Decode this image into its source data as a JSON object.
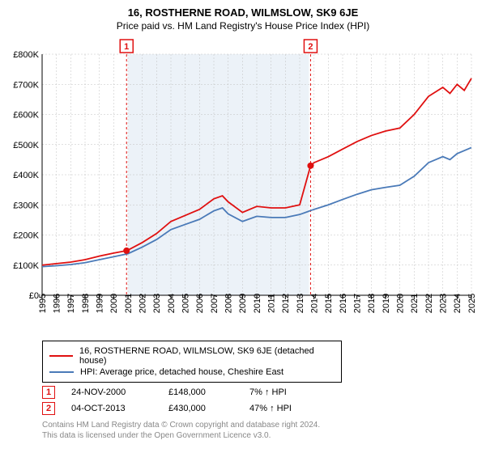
{
  "title": "16, ROSTHERNE ROAD, WILMSLOW, SK9 6JE",
  "subtitle": "Price paid vs. HM Land Registry's House Price Index (HPI)",
  "chart": {
    "type": "line",
    "background_color": "#ffffff",
    "grid_color": "#c0c0c0",
    "axis_color": "#000000",
    "band_color": "#dfeaf4",
    "xlim": [
      1995,
      2025
    ],
    "ylim": [
      0,
      800000
    ],
    "y_ticks": [
      0,
      100000,
      200000,
      300000,
      400000,
      500000,
      600000,
      700000,
      800000
    ],
    "y_tick_labels": [
      "£0",
      "£100K",
      "£200K",
      "£300K",
      "£400K",
      "£500K",
      "£600K",
      "£700K",
      "£800K"
    ],
    "x_ticks": [
      1995,
      1996,
      1997,
      1998,
      1999,
      2000,
      2001,
      2002,
      2003,
      2004,
      2005,
      2006,
      2007,
      2008,
      2009,
      2010,
      2011,
      2012,
      2013,
      2014,
      2015,
      2016,
      2017,
      2018,
      2019,
      2020,
      2021,
      2022,
      2023,
      2024,
      2025
    ],
    "band_ranges": [
      [
        2000.9,
        2001.1
      ],
      [
        2013.76,
        2014.0
      ]
    ],
    "series": [
      {
        "name": "property",
        "label": "16, ROSTHERNE ROAD, WILMSLOW, SK9 6JE (detached house)",
        "color": "#e01010",
        "line_width": 1.8,
        "points": [
          [
            1995,
            100000
          ],
          [
            1996,
            105000
          ],
          [
            1997,
            110000
          ],
          [
            1998,
            118000
          ],
          [
            1999,
            130000
          ],
          [
            2000,
            140000
          ],
          [
            2000.9,
            148000
          ],
          [
            2001,
            150000
          ],
          [
            2002,
            175000
          ],
          [
            2003,
            205000
          ],
          [
            2004,
            245000
          ],
          [
            2005,
            265000
          ],
          [
            2006,
            285000
          ],
          [
            2007,
            320000
          ],
          [
            2007.6,
            330000
          ],
          [
            2008,
            310000
          ],
          [
            2009,
            275000
          ],
          [
            2010,
            295000
          ],
          [
            2011,
            290000
          ],
          [
            2012,
            290000
          ],
          [
            2013,
            300000
          ],
          [
            2013.76,
            430000
          ],
          [
            2014,
            440000
          ],
          [
            2015,
            460000
          ],
          [
            2016,
            485000
          ],
          [
            2017,
            510000
          ],
          [
            2018,
            530000
          ],
          [
            2019,
            545000
          ],
          [
            2020,
            555000
          ],
          [
            2021,
            600000
          ],
          [
            2022,
            660000
          ],
          [
            2023,
            690000
          ],
          [
            2023.5,
            670000
          ],
          [
            2024,
            700000
          ],
          [
            2024.5,
            680000
          ],
          [
            2025,
            720000
          ]
        ]
      },
      {
        "name": "hpi",
        "label": "HPI: Average price, detached house, Cheshire East",
        "color": "#4a7ab8",
        "line_width": 1.5,
        "points": [
          [
            1995,
            95000
          ],
          [
            1996,
            98000
          ],
          [
            1997,
            102000
          ],
          [
            1998,
            108000
          ],
          [
            1999,
            118000
          ],
          [
            2000,
            128000
          ],
          [
            2001,
            138000
          ],
          [
            2002,
            160000
          ],
          [
            2003,
            185000
          ],
          [
            2004,
            218000
          ],
          [
            2005,
            235000
          ],
          [
            2006,
            252000
          ],
          [
            2007,
            280000
          ],
          [
            2007.6,
            290000
          ],
          [
            2008,
            270000
          ],
          [
            2009,
            245000
          ],
          [
            2010,
            262000
          ],
          [
            2011,
            258000
          ],
          [
            2012,
            258000
          ],
          [
            2013,
            268000
          ],
          [
            2014,
            285000
          ],
          [
            2015,
            300000
          ],
          [
            2016,
            318000
          ],
          [
            2017,
            335000
          ],
          [
            2018,
            350000
          ],
          [
            2019,
            358000
          ],
          [
            2020,
            365000
          ],
          [
            2021,
            395000
          ],
          [
            2022,
            440000
          ],
          [
            2023,
            460000
          ],
          [
            2023.5,
            450000
          ],
          [
            2024,
            470000
          ],
          [
            2025,
            490000
          ]
        ]
      }
    ],
    "markers": [
      {
        "n": "1",
        "x": 2000.9,
        "y": 148000,
        "color": "#e01010"
      },
      {
        "n": "2",
        "x": 2013.76,
        "y": 430000,
        "color": "#e01010"
      }
    ]
  },
  "legend": {
    "items": [
      {
        "color": "#e01010",
        "label": "16, ROSTHERNE ROAD, WILMSLOW, SK9 6JE (detached house)"
      },
      {
        "color": "#4a7ab8",
        "label": "HPI: Average price, detached house, Cheshire East"
      }
    ]
  },
  "events": [
    {
      "n": "1",
      "color": "#e01010",
      "date": "24-NOV-2000",
      "price": "£148,000",
      "delta": "7% ↑ HPI"
    },
    {
      "n": "2",
      "color": "#e01010",
      "date": "04-OCT-2013",
      "price": "£430,000",
      "delta": "47% ↑ HPI"
    }
  ],
  "footer_line1": "Contains HM Land Registry data © Crown copyright and database right 2024.",
  "footer_line2": "This data is licensed under the Open Government Licence v3.0."
}
